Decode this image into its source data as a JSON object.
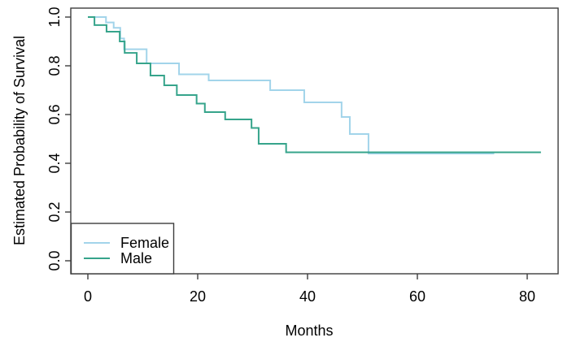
{
  "chart_data": {
    "type": "line",
    "subtype": "kaplan-meier-step-survival",
    "title": "",
    "xlabel": "Months",
    "ylabel": "Estimated Probability of Survival",
    "xlim": [
      0,
      85
    ],
    "ylim": [
      0.0,
      1.0
    ],
    "grid": false,
    "xticks": [
      "0",
      "20",
      "40",
      "60",
      "80"
    ],
    "xtick_values": [
      0,
      20,
      40,
      60,
      80
    ],
    "yticks": [
      "0.0",
      "0.2",
      "0.4",
      "0.6",
      "0.8",
      "1.0"
    ],
    "ytick_values": [
      0.0,
      0.2,
      0.4,
      0.6,
      0.8,
      1.0
    ],
    "axis_color": "#3d3d3d",
    "text_color": "#000000",
    "legend_position": "bottom-left",
    "legend_entries": [
      "Female",
      "Male"
    ],
    "series": [
      {
        "name": "Female",
        "color": "#a2d4ea",
        "end_month": 74,
        "points": [
          [
            0,
            1.0
          ],
          [
            3.3,
            0.978
          ],
          [
            4.7,
            0.956
          ],
          [
            5.9,
            0.912
          ],
          [
            6.6,
            0.868
          ],
          [
            10.7,
            0.81
          ],
          [
            16.6,
            0.765
          ],
          [
            22,
            0.74
          ],
          [
            33.2,
            0.7
          ],
          [
            39.4,
            0.65
          ],
          [
            46.2,
            0.59
          ],
          [
            47.7,
            0.52
          ],
          [
            51.1,
            0.44
          ]
        ]
      },
      {
        "name": "Male",
        "color": "#36a48b",
        "end_month": 82.5,
        "points": [
          [
            0,
            1.0
          ],
          [
            1.2,
            0.967
          ],
          [
            3.4,
            0.94
          ],
          [
            5.8,
            0.9
          ],
          [
            6.7,
            0.853
          ],
          [
            8.9,
            0.81
          ],
          [
            11.4,
            0.76
          ],
          [
            13.9,
            0.72
          ],
          [
            16.2,
            0.68
          ],
          [
            19.8,
            0.645
          ],
          [
            21.3,
            0.61
          ],
          [
            25,
            0.58
          ],
          [
            29.8,
            0.545
          ],
          [
            31.1,
            0.48
          ],
          [
            36.1,
            0.445
          ]
        ]
      }
    ]
  }
}
